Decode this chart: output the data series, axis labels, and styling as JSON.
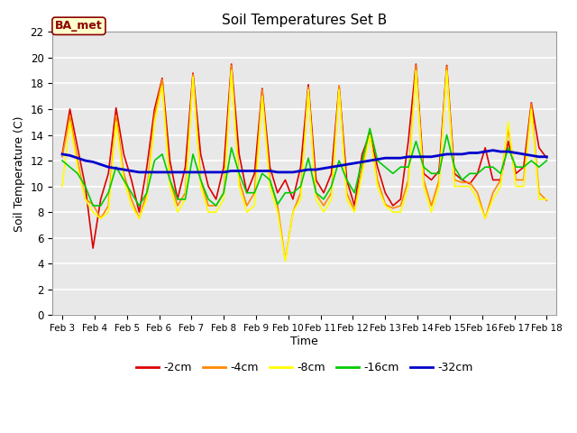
{
  "title": "Soil Temperatures Set B",
  "xlabel": "Time",
  "ylabel": "Soil Temperature (C)",
  "ylim": [
    0,
    22
  ],
  "yticks": [
    0,
    2,
    4,
    6,
    8,
    10,
    12,
    14,
    16,
    18,
    20,
    22
  ],
  "x_labels": [
    "Feb 3",
    "Feb 4",
    "Feb 5",
    "Feb 6",
    "Feb 7",
    "Feb 8",
    "Feb 9",
    "Feb 10",
    "Feb 11",
    "Feb 12",
    "Feb 13",
    "Feb 14",
    "Feb 15",
    "Feb 16",
    "Feb 17",
    "Feb 18"
  ],
  "bg_color": "#ffffff",
  "plot_bg": "#e8e8e8",
  "annotation_text": "BA_met",
  "series": {
    "-2cm": {
      "color": "#dd0000",
      "linewidth": 1.2,
      "values": [
        12.5,
        16.0,
        13.0,
        10.0,
        5.2,
        9.0,
        11.0,
        16.1,
        12.5,
        10.5,
        8.0,
        11.5,
        16.0,
        18.4,
        12.0,
        9.0,
        11.5,
        18.8,
        12.5,
        10.0,
        9.0,
        11.5,
        19.5,
        12.5,
        9.5,
        11.0,
        17.6,
        11.5,
        9.5,
        10.5,
        9.0,
        11.5,
        17.9,
        10.5,
        9.5,
        11.0,
        17.8,
        10.5,
        8.5,
        12.5,
        14.1,
        11.5,
        9.5,
        8.5,
        9.0,
        13.5,
        19.5,
        11.0,
        10.5,
        11.2,
        19.4,
        11.0,
        10.5,
        10.2,
        11.0,
        13.0,
        10.5,
        10.5,
        13.5,
        11.0,
        11.5,
        16.5,
        13.0,
        12.2
      ]
    },
    "-4cm": {
      "color": "#ff8800",
      "linewidth": 1.2,
      "values": [
        12.3,
        15.5,
        12.0,
        9.0,
        8.6,
        7.5,
        8.5,
        15.5,
        11.0,
        9.0,
        7.5,
        9.5,
        15.5,
        18.3,
        10.5,
        8.5,
        9.5,
        18.7,
        10.5,
        8.5,
        8.5,
        9.5,
        19.4,
        10.5,
        8.5,
        9.5,
        17.5,
        10.5,
        8.5,
        4.3,
        8.0,
        9.5,
        17.7,
        9.4,
        8.5,
        9.5,
        17.8,
        9.5,
        8.1,
        11.5,
        14.0,
        10.5,
        8.6,
        8.3,
        8.5,
        10.5,
        19.4,
        10.5,
        8.5,
        10.5,
        19.3,
        10.5,
        10.3,
        10.3,
        9.5,
        7.5,
        9.5,
        10.5,
        14.5,
        10.5,
        10.5,
        16.4,
        9.5,
        8.9
      ]
    },
    "-8cm": {
      "color": "#ffff00",
      "linewidth": 1.2,
      "values": [
        10.0,
        15.0,
        11.5,
        9.0,
        8.0,
        7.5,
        8.0,
        15.0,
        10.5,
        8.5,
        7.5,
        9.0,
        15.0,
        17.8,
        10.0,
        8.0,
        9.0,
        18.5,
        10.0,
        8.0,
        8.0,
        9.0,
        19.0,
        10.0,
        8.0,
        8.5,
        17.0,
        10.0,
        8.0,
        4.2,
        8.0,
        9.0,
        17.5,
        9.0,
        8.0,
        9.0,
        17.5,
        9.0,
        8.0,
        11.0,
        14.0,
        10.0,
        8.5,
        8.0,
        8.0,
        10.0,
        19.0,
        10.0,
        8.0,
        10.0,
        19.0,
        10.0,
        10.0,
        10.0,
        9.0,
        7.5,
        9.0,
        10.0,
        15.0,
        10.0,
        10.0,
        16.0,
        9.0,
        9.0
      ]
    },
    "-16cm": {
      "color": "#00cc00",
      "linewidth": 1.2,
      "values": [
        12.0,
        11.5,
        11.0,
        10.0,
        8.5,
        8.5,
        9.5,
        11.5,
        10.5,
        9.5,
        8.5,
        9.5,
        12.0,
        12.5,
        10.5,
        9.0,
        9.0,
        12.5,
        10.5,
        9.0,
        8.5,
        9.5,
        13.0,
        11.0,
        9.5,
        9.5,
        11.0,
        10.5,
        8.6,
        9.5,
        9.5,
        10.0,
        12.2,
        9.5,
        9.0,
        10.0,
        12.0,
        10.5,
        9.5,
        12.0,
        14.5,
        12.0,
        11.5,
        11.0,
        11.5,
        11.5,
        13.5,
        11.5,
        11.0,
        11.0,
        14.0,
        11.5,
        10.5,
        11.0,
        11.0,
        11.5,
        11.5,
        11.0,
        13.0,
        11.5,
        11.5,
        12.0,
        11.5,
        12.0
      ]
    },
    "-32cm": {
      "color": "#0000cc",
      "linewidth": 2.0,
      "values": [
        12.5,
        12.4,
        12.2,
        12.0,
        11.9,
        11.7,
        11.5,
        11.4,
        11.3,
        11.2,
        11.1,
        11.1,
        11.1,
        11.1,
        11.1,
        11.1,
        11.1,
        11.1,
        11.1,
        11.1,
        11.1,
        11.1,
        11.2,
        11.2,
        11.2,
        11.2,
        11.2,
        11.2,
        11.1,
        11.1,
        11.1,
        11.2,
        11.3,
        11.3,
        11.4,
        11.5,
        11.6,
        11.7,
        11.8,
        11.9,
        12.0,
        12.1,
        12.2,
        12.2,
        12.2,
        12.3,
        12.3,
        12.3,
        12.3,
        12.4,
        12.5,
        12.5,
        12.5,
        12.6,
        12.6,
        12.7,
        12.8,
        12.7,
        12.7,
        12.6,
        12.5,
        12.4,
        12.3,
        12.3
      ]
    }
  },
  "legend_order": [
    "-2cm",
    "-4cm",
    "-8cm",
    "-16cm",
    "-32cm"
  ],
  "n_days": 16,
  "pts_per_day": 4
}
